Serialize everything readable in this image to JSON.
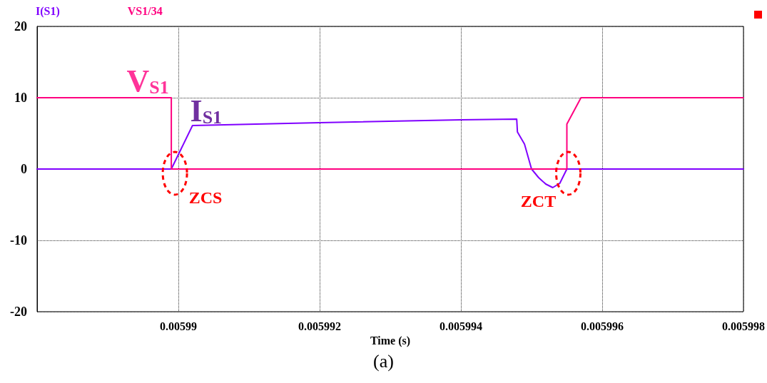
{
  "chart_data": {
    "type": "line",
    "xlabel": "Time (s)",
    "legend": "top left",
    "grid": true,
    "marker": "none",
    "line_style": "solid",
    "xlim": [
      0.005988,
      0.005998
    ],
    "xticks": [
      0.00599,
      0.005992,
      0.005994,
      0.005996,
      0.005998
    ],
    "ylim": [
      -20,
      20
    ],
    "yticks": [
      -20,
      -10,
      0,
      10,
      20
    ],
    "series": [
      {
        "name": "I(S1)",
        "color": "#8000ff",
        "x": [
          0.005988,
          0.0059899,
          0.0059902,
          0.005992,
          0.005994,
          0.00599479,
          0.0059948,
          0.0059949,
          0.005995,
          0.0059951,
          0.0059952,
          0.0059953,
          0.0059954,
          0.0059955,
          0.005998
        ],
        "values": [
          0,
          0,
          6.1,
          6.5,
          6.9,
          7.0,
          5.2,
          3.5,
          0,
          -1.2,
          -2.1,
          -2.6,
          -2.0,
          0,
          0
        ]
      },
      {
        "name": "VS1/34",
        "color": "#ff0080",
        "x": [
          0.005988,
          0.0059899,
          0.0059899,
          0.0059955,
          0.0059955,
          0.0059957,
          0.005998
        ],
        "values": [
          10,
          10,
          0,
          0,
          6.3,
          10,
          10
        ]
      }
    ],
    "annotations": [
      {
        "text": "V$_{S1}$",
        "x": 0.0059899,
        "y": 10
      },
      {
        "text": "I$_{S1}$",
        "x": 0.0059902,
        "y": 6.1
      },
      {
        "text": "ZCS",
        "x": 0.0059899,
        "y": 0
      },
      {
        "text": "ZCT",
        "x": 0.0059955,
        "y": 0
      },
      "(a)"
    ]
  }
}
